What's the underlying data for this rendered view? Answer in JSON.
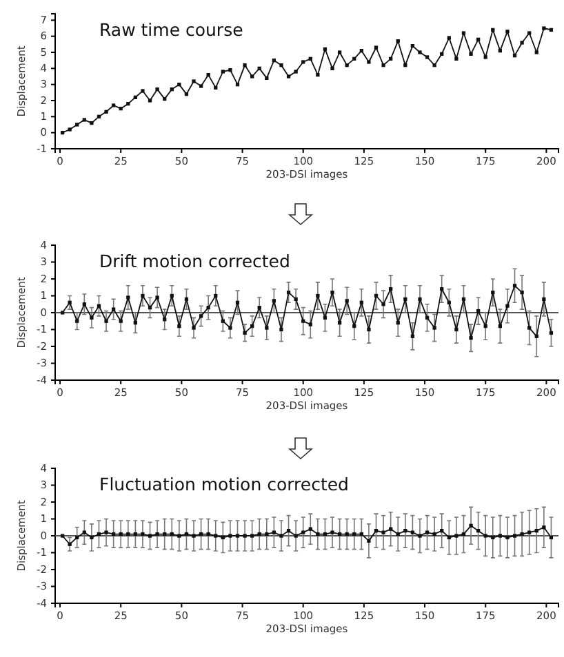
{
  "chart_data": [
    {
      "type": "line",
      "title": "Raw time course",
      "xlabel": "203-DSI images",
      "ylabel": "Displacement",
      "xlim": [
        -2,
        205
      ],
      "xticks": [
        0,
        25,
        50,
        75,
        100,
        125,
        150,
        175,
        200
      ],
      "ylim": [
        -1,
        7.4
      ],
      "yticks": [
        -1,
        0,
        1,
        2,
        3,
        4,
        5,
        6,
        7
      ],
      "marker": "square",
      "line_style": "solid",
      "x": [
        1,
        4,
        7,
        10,
        13,
        16,
        19,
        22,
        25,
        28,
        31,
        34,
        37,
        40,
        43,
        46,
        49,
        52,
        55,
        58,
        61,
        64,
        67,
        70,
        73,
        76,
        79,
        82,
        85,
        88,
        91,
        94,
        97,
        100,
        103,
        106,
        109,
        112,
        115,
        118,
        121,
        124,
        127,
        130,
        133,
        136,
        139,
        142,
        145,
        148,
        151,
        154,
        157,
        160,
        163,
        166,
        169,
        172,
        175,
        178,
        181,
        184,
        187,
        190,
        193,
        196,
        199,
        202
      ],
      "series": [
        {
          "color": "#111111",
          "values": [
            0,
            0.2,
            0.5,
            0.8,
            0.6,
            1.0,
            1.3,
            1.7,
            1.5,
            1.8,
            2.2,
            2.6,
            2.0,
            2.7,
            2.1,
            2.7,
            3.0,
            2.4,
            3.2,
            2.9,
            3.6,
            2.8,
            3.8,
            3.9,
            3.0,
            4.2,
            3.5,
            4.0,
            3.4,
            4.5,
            4.2,
            3.5,
            3.8,
            4.4,
            4.6,
            3.6,
            5.2,
            4.0,
            5.0,
            4.2,
            4.6,
            5.1,
            4.4,
            5.3,
            4.2,
            4.6,
            5.7,
            4.2,
            5.4,
            5.0,
            4.7,
            4.2,
            4.9,
            5.9,
            4.6,
            6.2,
            4.9,
            5.8,
            4.7,
            6.4,
            5.1,
            6.3,
            4.8,
            5.6,
            6.2,
            5.0,
            6.5,
            6.4
          ]
        }
      ]
    },
    {
      "type": "line",
      "title": "Drift motion corrected",
      "xlabel": "203-DSI images",
      "ylabel": "Displacement",
      "xlim": [
        -2,
        205
      ],
      "xticks": [
        0,
        25,
        50,
        75,
        100,
        125,
        150,
        175,
        200
      ],
      "ylim": [
        -4,
        4
      ],
      "yticks": [
        -4,
        -3,
        -2,
        -1,
        0,
        1,
        2,
        3,
        4
      ],
      "marker": "square",
      "line_style": "solid",
      "ref_lines": [
        {
          "axis": "y",
          "value": 0,
          "color": "#555555"
        }
      ],
      "x": [
        1,
        4,
        7,
        10,
        13,
        16,
        19,
        22,
        25,
        28,
        31,
        34,
        37,
        40,
        43,
        46,
        49,
        52,
        55,
        58,
        61,
        64,
        67,
        70,
        73,
        76,
        79,
        82,
        85,
        88,
        91,
        94,
        97,
        100,
        103,
        106,
        109,
        112,
        115,
        118,
        121,
        124,
        127,
        130,
        133,
        136,
        139,
        142,
        145,
        148,
        151,
        154,
        157,
        160,
        163,
        166,
        169,
        172,
        175,
        178,
        181,
        184,
        187,
        190,
        193,
        196,
        199,
        202
      ],
      "series": [
        {
          "color": "#111111",
          "values": [
            0,
            0.6,
            -0.5,
            0.5,
            -0.3,
            0.4,
            -0.5,
            0.2,
            -0.5,
            0.9,
            -0.6,
            1.0,
            0.3,
            0.9,
            -0.4,
            1.0,
            -0.8,
            0.8,
            -0.9,
            -0.2,
            0.3,
            1.0,
            -0.5,
            -0.9,
            0.6,
            -1.2,
            -0.8,
            0.3,
            -0.9,
            0.7,
            -1.0,
            1.2,
            0.8,
            -0.5,
            -0.7,
            1.0,
            -0.3,
            1.2,
            -0.6,
            0.7,
            -0.8,
            0.6,
            -1.0,
            1.0,
            0.5,
            1.4,
            -0.6,
            0.8,
            -1.4,
            0.8,
            -0.3,
            -0.9,
            1.4,
            0.6,
            -1.0,
            0.8,
            -1.5,
            0.1,
            -0.8,
            1.2,
            -0.8,
            0.4,
            1.6,
            1.2,
            -0.9,
            -1.4,
            0.8,
            -1.2
          ],
          "errors": [
            null,
            0.4,
            0.5,
            0.6,
            0.6,
            0.6,
            0.6,
            0.6,
            0.6,
            0.7,
            0.6,
            0.6,
            0.6,
            0.6,
            0.6,
            0.6,
            0.6,
            0.6,
            0.6,
            0.6,
            0.7,
            0.6,
            0.6,
            0.6,
            0.7,
            0.5,
            0.6,
            0.6,
            0.7,
            0.7,
            0.7,
            0.6,
            0.6,
            0.8,
            0.8,
            0.8,
            0.8,
            0.8,
            0.8,
            0.8,
            0.8,
            0.8,
            0.8,
            0.8,
            0.8,
            0.8,
            0.8,
            0.8,
            0.8,
            0.8,
            0.8,
            0.8,
            0.8,
            0.8,
            0.8,
            0.8,
            0.8,
            0.8,
            0.8,
            0.8,
            1.0,
            1.0,
            1.0,
            1.0,
            1.0,
            1.2,
            1.0,
            0.8
          ]
        }
      ]
    },
    {
      "type": "line",
      "title": "Fluctuation motion corrected",
      "xlabel": "203-DSI images",
      "ylabel": "Displacement",
      "xlim": [
        -2,
        205
      ],
      "xticks": [
        0,
        25,
        50,
        75,
        100,
        125,
        150,
        175,
        200
      ],
      "ylim": [
        -4,
        4
      ],
      "yticks": [
        -4,
        -3,
        -2,
        -1,
        0,
        1,
        2,
        3,
        4
      ],
      "marker": "square",
      "line_style": "solid",
      "ref_lines": [
        {
          "axis": "y",
          "value": 0,
          "color": "#555555"
        }
      ],
      "x": [
        1,
        4,
        7,
        10,
        13,
        16,
        19,
        22,
        25,
        28,
        31,
        34,
        37,
        40,
        43,
        46,
        49,
        52,
        55,
        58,
        61,
        64,
        67,
        70,
        73,
        76,
        79,
        82,
        85,
        88,
        91,
        94,
        97,
        100,
        103,
        106,
        109,
        112,
        115,
        118,
        121,
        124,
        127,
        130,
        133,
        136,
        139,
        142,
        145,
        148,
        151,
        154,
        157,
        160,
        163,
        166,
        169,
        172,
        175,
        178,
        181,
        184,
        187,
        190,
        193,
        196,
        199,
        202
      ],
      "series": [
        {
          "color": "#111111",
          "values": [
            0,
            -0.5,
            -0.1,
            0.2,
            -0.1,
            0.1,
            0.2,
            0.1,
            0.1,
            0.1,
            0.1,
            0.1,
            0,
            0.1,
            0.1,
            0.1,
            0,
            0.1,
            0,
            0.1,
            0.1,
            0,
            -0.1,
            0,
            0,
            0,
            0,
            0.1,
            0.1,
            0.2,
            0,
            0.3,
            0,
            0.2,
            0.4,
            0.1,
            0.1,
            0.2,
            0.1,
            0.1,
            0.1,
            0.1,
            -0.3,
            0.3,
            0.2,
            0.4,
            0.1,
            0.3,
            0.2,
            0,
            0.2,
            0.1,
            0.3,
            -0.1,
            0,
            0.1,
            0.6,
            0.3,
            0,
            -0.1,
            0,
            -0.1,
            0,
            0.1,
            0.2,
            0.3,
            0.5,
            -0.1
          ],
          "errors": [
            null,
            0.4,
            0.6,
            0.7,
            0.8,
            0.8,
            0.8,
            0.8,
            0.8,
            0.8,
            0.8,
            0.8,
            0.8,
            0.8,
            0.9,
            0.9,
            0.9,
            0.9,
            0.9,
            0.9,
            0.9,
            0.9,
            0.9,
            0.9,
            0.9,
            0.9,
            0.9,
            0.9,
            0.9,
            0.9,
            0.9,
            0.9,
            0.9,
            0.9,
            0.9,
            0.9,
            0.9,
            0.9,
            0.9,
            0.9,
            0.9,
            0.9,
            1.0,
            1.0,
            1.0,
            1.0,
            1.0,
            1.0,
            1.0,
            1.0,
            1.0,
            1.0,
            1.0,
            1.0,
            1.1,
            1.1,
            1.1,
            1.1,
            1.2,
            1.2,
            1.2,
            1.2,
            1.2,
            1.3,
            1.3,
            1.3,
            1.2,
            1.2
          ]
        }
      ]
    }
  ]
}
